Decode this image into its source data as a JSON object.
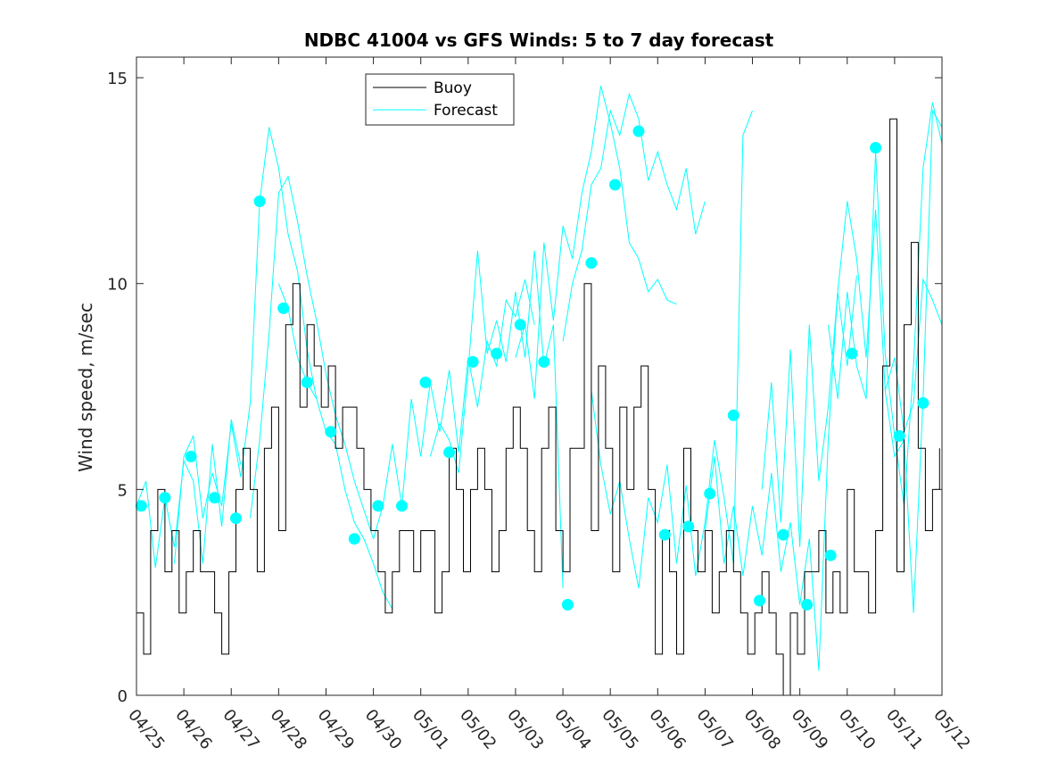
{
  "chart_data": {
    "type": "line",
    "title": "NDBC 41004 vs GFS Winds: 5 to 7 day forecast",
    "xlabel": "",
    "ylabel": "Wind speed, m/sec",
    "xlim": [
      "04/25",
      "05/12"
    ],
    "ylim": [
      0,
      15.5
    ],
    "x_ticks": [
      "04/25",
      "04/26",
      "04/27",
      "04/28",
      "04/29",
      "04/30",
      "05/01",
      "05/02",
      "05/03",
      "05/04",
      "05/05",
      "05/06",
      "05/07",
      "05/08",
      "05/09",
      "05/10",
      "05/11",
      "05/12"
    ],
    "y_ticks": [
      "0",
      "5",
      "10",
      "15"
    ],
    "grid": false,
    "legend": {
      "position": "top-center",
      "entries": [
        "Buoy",
        "Forecast"
      ]
    },
    "colors": {
      "buoy": "#000000",
      "forecast": "#00ffff",
      "markers": "#00ffff"
    },
    "series": [
      {
        "name": "Buoy",
        "style": "step",
        "x_day_offset": [
          0.0,
          0.15,
          0.3,
          0.45,
          0.6,
          0.75,
          0.9,
          1.05,
          1.2,
          1.35,
          1.5,
          1.65,
          1.8,
          1.95,
          2.1,
          2.25,
          2.4,
          2.55,
          2.7,
          2.85,
          3.0,
          3.15,
          3.3,
          3.45,
          3.6,
          3.75,
          3.9,
          4.05,
          4.2,
          4.35,
          4.5,
          4.65,
          4.8,
          4.95,
          5.1,
          5.25,
          5.4,
          5.55,
          5.7,
          5.85,
          6.0,
          6.15,
          6.3,
          6.45,
          6.6,
          6.75,
          6.9,
          7.05,
          7.2,
          7.35,
          7.5,
          7.65,
          7.8,
          7.95,
          8.1,
          8.25,
          8.4,
          8.55,
          8.7,
          8.85,
          9.0,
          9.15,
          9.3,
          9.45,
          9.6,
          9.75,
          9.9,
          10.05,
          10.2,
          10.35,
          10.5,
          10.65,
          10.8,
          10.95,
          11.1,
          11.25,
          11.4,
          11.55,
          11.7,
          11.85,
          12.0,
          12.15,
          12.3,
          12.45,
          12.6,
          12.75,
          12.9,
          13.05,
          13.2,
          13.35,
          13.5,
          13.65,
          13.8,
          13.95,
          14.1,
          14.25,
          14.4,
          14.55,
          14.7,
          14.85,
          15.0,
          15.15,
          15.3,
          15.45,
          15.6,
          15.75,
          15.9,
          16.05,
          16.2,
          16.35,
          16.5,
          16.65,
          16.8,
          16.95
        ],
        "values": [
          2,
          1,
          4,
          5,
          3,
          4,
          2,
          3,
          4,
          3,
          3,
          2,
          1,
          3,
          5,
          6,
          5,
          3,
          6,
          7,
          4,
          9,
          10,
          7,
          9,
          8,
          7,
          8,
          6,
          7,
          7,
          6,
          5,
          4,
          3,
          2,
          3,
          4,
          4,
          3,
          4,
          4,
          2,
          3,
          6,
          5,
          3,
          5,
          6,
          5,
          3,
          4,
          6,
          7,
          6,
          4,
          3,
          6,
          7,
          4,
          3,
          6,
          6,
          10,
          4,
          8,
          6,
          3,
          7,
          5,
          7,
          8,
          5,
          1,
          4,
          3,
          1,
          6,
          4,
          3,
          4,
          2,
          3,
          4,
          3,
          2,
          1,
          2,
          3,
          2,
          1,
          0,
          2,
          1,
          3,
          3,
          4,
          2,
          3,
          2,
          5,
          3,
          3,
          2,
          4,
          8,
          14,
          3,
          9,
          11,
          6,
          4,
          5,
          6
        ]
      },
      {
        "name": "Forecast",
        "style": "multiple overlapping forecast lines",
        "lines": [
          {
            "x_day_offset": [
              0.0,
              0.2,
              0.4,
              0.6,
              0.8,
              1.0,
              1.2,
              1.4,
              1.6,
              1.8,
              2.0,
              2.2
            ],
            "values": [
              4.6,
              5.2,
              3.1,
              4.8,
              3.6,
              5.7,
              5.2,
              3.2,
              6.1,
              4.1,
              6.7,
              5.6
            ]
          },
          {
            "x_day_offset": [
              0.8,
              1.0,
              1.2,
              1.4,
              1.6,
              1.8,
              2.0,
              2.2,
              2.4,
              2.6,
              2.8,
              3.0,
              3.2,
              3.4,
              3.6,
              3.8
            ],
            "values": [
              3.2,
              5.8,
              6.3,
              4.3,
              5.4,
              4.6,
              6.6,
              5.3,
              7.1,
              12.0,
              13.8,
              12.8,
              11.2,
              10.3,
              8.4,
              7.2
            ]
          },
          {
            "x_day_offset": [
              2.4,
              2.6,
              2.8,
              3.0,
              3.2,
              3.4,
              3.6,
              3.8,
              4.0,
              4.2,
              4.4,
              4.6,
              4.8,
              5.0
            ],
            "values": [
              4.3,
              6.2,
              8.8,
              12.2,
              12.6,
              11.5,
              10.2,
              9.1,
              7.8,
              6.8,
              6.1,
              5.2,
              4.5,
              3.8
            ]
          },
          {
            "x_day_offset": [
              3.0,
              3.2,
              3.4,
              3.6,
              3.8,
              4.0,
              4.2,
              4.4,
              4.6,
              4.8,
              5.0,
              5.2,
              5.4
            ],
            "values": [
              10.0,
              9.4,
              8.2,
              7.6,
              7.2,
              6.4,
              6.1,
              5.0,
              4.2,
              3.8,
              3.2,
              2.5,
              2.1
            ]
          },
          {
            "x_day_offset": [
              5.0,
              5.2,
              5.4,
              5.6,
              5.8,
              6.0,
              6.2,
              6.4,
              6.6,
              6.8,
              7.0,
              7.2,
              7.4,
              7.6,
              7.8,
              8.0,
              8.2,
              8.4
            ],
            "values": [
              3.8,
              4.6,
              6.1,
              4.6,
              7.2,
              5.8,
              7.6,
              6.4,
              7.9,
              5.9,
              8.2,
              7.0,
              8.6,
              8.0,
              9.6,
              9.2,
              10.1,
              9.0
            ]
          },
          {
            "x_day_offset": [
              6.2,
              6.4,
              6.6,
              6.8,
              7.0,
              7.2,
              7.4,
              7.6,
              7.8,
              8.0,
              8.2,
              8.4,
              8.6,
              8.8,
              9.0
            ],
            "values": [
              5.8,
              6.6,
              6.2,
              5.4,
              7.9,
              10.8,
              8.3,
              9.1,
              8.1,
              9.8,
              8.2,
              10.8,
              8.0,
              9.0,
              2.6
            ]
          },
          {
            "x_day_offset": [
              8.0,
              8.2,
              8.4,
              8.6,
              8.8,
              9.0,
              9.2,
              9.4,
              9.6,
              9.8,
              10.0,
              10.2,
              10.4,
              10.6,
              10.8,
              11.0,
              11.2,
              11.4
            ],
            "values": [
              8.2,
              9.0,
              7.2,
              11.0,
              9.1,
              11.4,
              10.6,
              12.2,
              13.2,
              14.8,
              13.9,
              12.8,
              11.0,
              10.6,
              9.8,
              10.1,
              9.6,
              9.5
            ]
          },
          {
            "x_day_offset": [
              9.0,
              9.2,
              9.4,
              9.6,
              9.8,
              10.0,
              10.2,
              10.4,
              10.6,
              10.8,
              11.0,
              11.2,
              11.4,
              11.6,
              11.8,
              12.0
            ],
            "values": [
              8.6,
              10.0,
              10.8,
              12.4,
              12.8,
              14.2,
              13.6,
              14.6,
              14.0,
              12.5,
              13.2,
              12.4,
              11.8,
              12.8,
              11.2,
              12.0
            ]
          },
          {
            "x_day_offset": [
              9.6,
              9.8,
              10.0,
              10.2,
              10.4,
              10.6,
              10.8,
              11.0,
              11.2,
              11.4,
              11.6,
              11.8,
              12.0,
              12.2,
              12.4,
              12.6,
              12.8,
              13.0
            ],
            "values": [
              7.4,
              5.6,
              4.4,
              5.2,
              3.8,
              2.6,
              4.8,
              4.2,
              5.6,
              3.2,
              5.1,
              2.9,
              4.2,
              6.2,
              4.8,
              3.2,
              13.6,
              14.2
            ]
          },
          {
            "x_day_offset": [
              12.0,
              12.2,
              12.4,
              12.6,
              12.8,
              13.0,
              13.2,
              13.4,
              13.6,
              13.8,
              14.0,
              14.2,
              14.4,
              14.6,
              14.8,
              15.0,
              15.2
            ],
            "values": [
              4.0,
              5.8,
              3.2,
              4.6,
              2.9,
              4.6,
              3.4,
              5.4,
              3.0,
              4.2,
              2.2,
              3.8,
              0.6,
              6.2,
              9.8,
              8.0,
              10.2
            ]
          },
          {
            "x_day_offset": [
              13.2,
              13.4,
              13.6,
              13.8,
              14.0,
              14.2,
              14.4,
              14.6,
              14.8,
              15.0,
              15.2,
              15.4,
              15.6,
              15.8,
              16.0,
              16.2,
              16.4,
              16.6,
              16.8,
              17.0
            ],
            "values": [
              5.0,
              7.6,
              4.2,
              8.4,
              3.6,
              9.0,
              5.2,
              7.0,
              9.8,
              12.0,
              10.6,
              8.2,
              11.8,
              7.4,
              5.8,
              6.2,
              2.0,
              7.2,
              14.2,
              13.8
            ]
          },
          {
            "x_day_offset": [
              14.6,
              14.8,
              15.0,
              15.2,
              15.4,
              15.6,
              15.8,
              16.0,
              16.2,
              16.4,
              16.6,
              16.8,
              17.0
            ],
            "values": [
              9.0,
              7.2,
              9.8,
              8.0,
              7.2,
              13.2,
              8.3,
              6.3,
              4.6,
              8.0,
              12.8,
              14.4,
              13.4
            ]
          },
          {
            "x_day_offset": [
              15.8,
              16.0,
              16.2,
              16.4,
              16.6,
              16.8,
              17.0
            ],
            "values": [
              7.4,
              8.2,
              6.4,
              7.1,
              10.1,
              9.6,
              9.0
            ]
          }
        ]
      },
      {
        "name": "Forecast markers",
        "x_day_offset": [
          0.1,
          0.6,
          1.15,
          1.65,
          2.1,
          2.6,
          3.1,
          3.6,
          4.1,
          4.6,
          5.1,
          5.6,
          6.1,
          6.6,
          7.1,
          7.6,
          8.1,
          8.6,
          9.1,
          9.6,
          10.1,
          10.6,
          11.15,
          11.65,
          12.1,
          12.6,
          13.15,
          13.65,
          14.15,
          14.65,
          15.1,
          15.6,
          16.1,
          16.6
        ],
        "values": [
          4.6,
          4.8,
          5.8,
          4.8,
          4.3,
          12.0,
          9.4,
          7.6,
          6.4,
          3.8,
          4.6,
          4.6,
          7.6,
          5.9,
          8.1,
          8.3,
          9.0,
          8.1,
          2.2,
          10.5,
          12.4,
          13.7,
          3.9,
          4.1,
          4.9,
          6.8,
          2.3,
          3.9,
          2.2,
          3.4,
          8.3,
          13.3,
          6.3,
          7.1
        ]
      }
    ]
  }
}
